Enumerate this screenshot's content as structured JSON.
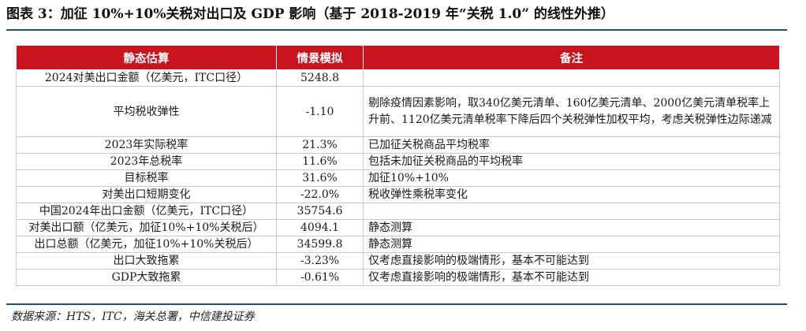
{
  "title": "图表 3：加征 10%+10%关税对出口及 GDP 影响（基于 2018-2019 年“关税 1.0” 的线性外推）",
  "table": {
    "headers": [
      "静态估算",
      "情景模拟",
      "备注"
    ],
    "rows": [
      {
        "label": "2024对美出口金额（亿美元，ITC口径）",
        "value": "5248.8",
        "note": ""
      },
      {
        "label": "平均税收弹性",
        "value": "-1.10",
        "note": "剔除疫情因素影响，取340亿美元清单、160亿美元清单、2000亿美元清单税率上升前、1120亿美元清单税率下降后四个关税弹性加权平均，考虑关税弹性边际递减"
      },
      {
        "label": "2023年实际税率",
        "value": "21.3%",
        "note": "已加征关税商品平均税率"
      },
      {
        "label": "2023年总税率",
        "value": "11.6%",
        "note": "包括未加征关税商品的平均税率"
      },
      {
        "label": "目标税率",
        "value": "31.6%",
        "note": "加征10%+10%"
      },
      {
        "label": "对美出口短期变化",
        "value": "-22.0%",
        "note": "税收弹性乘税率变化"
      },
      {
        "label": "中国2024年出口金额（亿美元，ITC口径）",
        "value": "35754.6",
        "note": ""
      },
      {
        "label": "对美出口额（亿美元，加征10%+10%关税后）",
        "value": "4094.1",
        "note": "静态测算"
      },
      {
        "label": "出口总额（亿美元，加征10%+10%关税后）",
        "value": "34599.8",
        "note": "静态测算"
      },
      {
        "label": "出口大致拖累",
        "value": "-3.23%",
        "note": "仅考虑直接影响的极端情形，基本不可能达到"
      },
      {
        "label": "GDP大致拖累",
        "value": "-0.61%",
        "note": "仅考虑直接影响的极端情形，基本不可能达到"
      }
    ]
  },
  "source": "数据来源：HTS，ITC，海关总署，中信建投证券",
  "colors": {
    "header_bg": "#c8141c",
    "rule": "#1f4e79"
  }
}
